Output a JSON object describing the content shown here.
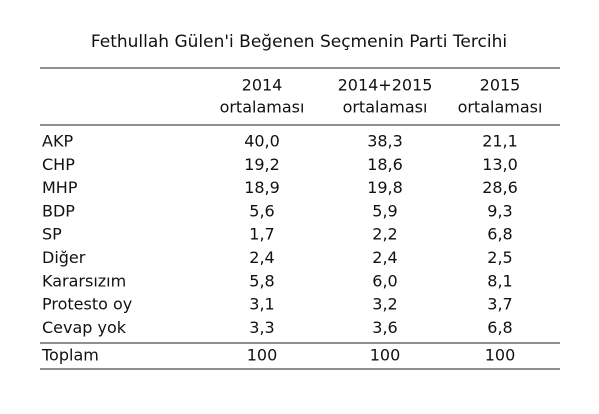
{
  "title": "Fethullah Gülen'i Beğenen Seçmenin Parti Tercihi",
  "table": {
    "columns": [
      {
        "line1": "2014",
        "line2": "ortalaması"
      },
      {
        "line1": "2014+2015",
        "line2": "ortalaması"
      },
      {
        "line1": "2015",
        "line2": "ortalaması"
      }
    ],
    "rows": [
      [
        "AKP",
        "40,0",
        "38,3",
        "21,1"
      ],
      [
        "CHP",
        "19,2",
        "18,6",
        "13,0"
      ],
      [
        "MHP",
        "18,9",
        "19,8",
        "28,6"
      ],
      [
        "BDP",
        "5,6",
        "5,9",
        "9,3"
      ],
      [
        "SP",
        "1,7",
        "2,2",
        "6,8"
      ],
      [
        "Diğer",
        "2,4",
        "2,4",
        "2,5"
      ],
      [
        "Kararsızım",
        "5,8",
        "6,0",
        "8,1"
      ],
      [
        "Protesto oy",
        "3,1",
        "3,2",
        "3,7"
      ],
      [
        "Cevap yok",
        "3,3",
        "3,6",
        "6,8"
      ]
    ],
    "total": [
      "Toplam",
      "100",
      "100",
      "100"
    ]
  }
}
